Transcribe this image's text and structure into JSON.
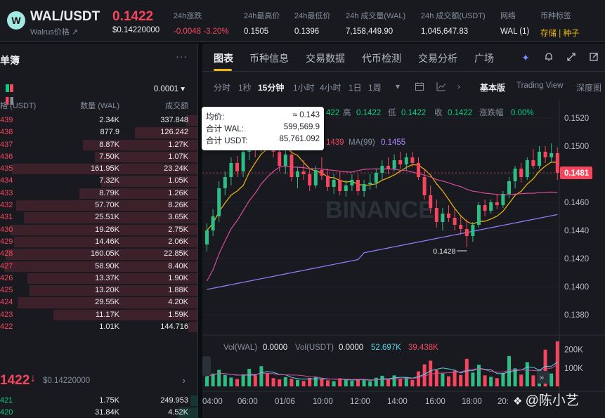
{
  "header": {
    "logo_letter": "W",
    "pair": "WAL/USDT",
    "subname": "Walrus价格 ↗",
    "last_price": "0.1422",
    "last_price_usd": "$0.14220000",
    "stats": [
      {
        "label": "24h涨跌",
        "value": "-0.0048 -3.20%",
        "tone": "neg"
      },
      {
        "label": "24h最高价",
        "value": "0.1505",
        "tone": ""
      },
      {
        "label": "24h最低价",
        "value": "0.1396",
        "tone": ""
      },
      {
        "label": "24h 成交量(WAL)",
        "value": "7,158,449.90",
        "tone": ""
      },
      {
        "label": "24h 成交额(USDT)",
        "value": "1,045,647.83",
        "tone": ""
      },
      {
        "label": "网络",
        "value": "WAL (1)",
        "tone": ""
      },
      {
        "label": "币种标签",
        "value": "存储 | 种子",
        "tone": "tag"
      }
    ]
  },
  "orderbook": {
    "title": "单簿",
    "more": "···",
    "precision": "0.0001 ▾",
    "columns": {
      "price": "格 (USDT)",
      "qty": "数量 (WAL)",
      "total": "成交额"
    },
    "asks": [
      {
        "price": "439",
        "qty": "2.34K",
        "total": "337.848",
        "depth": 0.06
      },
      {
        "price": "438",
        "qty": "877.9",
        "total": "126.242",
        "depth": 0.32
      },
      {
        "price": "437",
        "qty": "8.87K",
        "total": "1.27K",
        "depth": 0.58
      },
      {
        "price": "436",
        "qty": "7.50K",
        "total": "1.07K",
        "depth": 0.52
      },
      {
        "price": "435",
        "qty": "161.95K",
        "total": "23.24K",
        "depth": 0.94
      },
      {
        "price": "434",
        "qty": "7.32K",
        "total": "1.05K",
        "depth": 0.49
      },
      {
        "price": "433",
        "qty": "8.79K",
        "total": "1.26K",
        "depth": 0.6
      },
      {
        "price": "432",
        "qty": "57.70K",
        "total": "8.26K",
        "depth": 0.92
      },
      {
        "price": "431",
        "qty": "25.51K",
        "total": "3.65K",
        "depth": 0.88
      },
      {
        "price": "430",
        "qty": "19.26K",
        "total": "2.75K",
        "depth": 0.95
      },
      {
        "price": "429",
        "qty": "14.46K",
        "total": "2.06K",
        "depth": 0.93
      },
      {
        "price": "428",
        "qty": "160.05K",
        "total": "22.85K",
        "depth": 0.97
      },
      {
        "price": "427",
        "qty": "58.90K",
        "total": "8.40K",
        "depth": 0.98
      },
      {
        "price": "426",
        "qty": "13.37K",
        "total": "1.90K",
        "depth": 0.86
      },
      {
        "price": "425",
        "qty": "13.20K",
        "total": "1.88K",
        "depth": 0.85
      },
      {
        "price": "424",
        "qty": "29.55K",
        "total": "4.20K",
        "depth": 0.91
      },
      {
        "price": "423",
        "qty": "11.17K",
        "total": "1.59K",
        "depth": 0.73
      },
      {
        "price": "422",
        "qty": "1.01K",
        "total": "144.716",
        "depth": 0.05
      }
    ],
    "mid_price": "1422",
    "mid_arrow": "↓",
    "mid_usd": "$0.14220000",
    "mid_chevron": "›",
    "bids": [
      {
        "price": "421",
        "qty": "1.75K",
        "total": "249.953",
        "depth": 0.04
      },
      {
        "price": "420",
        "qty": "31.84K",
        "total": "4.52K",
        "depth": 0.1
      }
    ]
  },
  "panel": {
    "tabs": [
      "图表",
      "币种信息",
      "交易数据",
      "代币检测",
      "交易分析",
      "广场"
    ],
    "icons": [
      "sparkle-icon",
      "bell-icon",
      "expand-icon",
      "popout-icon"
    ],
    "timeframes": [
      "分时",
      "1秒",
      "15分钟",
      "1小时",
      "4小时",
      "1日",
      "1周"
    ],
    "active_timeframe": "15分钟",
    "views": [
      "基本版",
      "Trading View",
      "深度图"
    ],
    "active_view": "基本版"
  },
  "chart_data": {
    "type": "candlestick",
    "ohlc_legend": {
      "high_label": "高",
      "high": "0.1422",
      "low_label": "低",
      "low": "0.1422",
      "close_label": "收",
      "close": "0.1422",
      "change_label": "涨跌幅",
      "change": "0.00%",
      "open_partial": "422"
    },
    "ma_legend": {
      "ma_partial": "1439",
      "ma99_label": "MA(99)",
      "ma99": "0.1455"
    },
    "price_axis": [
      "0.1520",
      "0.1500",
      "0.1480",
      "0.1460",
      "0.1440",
      "0.1420",
      "0.1400",
      "0.1380"
    ],
    "price_range": [
      0.1368,
      0.1533
    ],
    "current_price_label": "0.1481",
    "low_marker": "0.1428",
    "time_axis": [
      "04:00",
      "06:00",
      "01/06",
      "10:00",
      "12:00",
      "14:00",
      "16:00",
      "18:00",
      "20:"
    ],
    "watermark": "BINANCE",
    "volume_legend": {
      "vol_wal_label": "Vol(WAL)",
      "vol_wal": "0.0000",
      "vol_usdt_label": "Vol(USDT)",
      "vol_usdt": "0.0000",
      "ma1": "52.697K",
      "ma2": "39.438K"
    },
    "volume_axis": [
      "200K",
      "100K"
    ],
    "volume_range": [
      0,
      260000
    ],
    "candles": [
      [
        0.143,
        0.1445,
        0.1425,
        0.144
      ],
      [
        0.144,
        0.1455,
        0.1436,
        0.145
      ],
      [
        0.145,
        0.1475,
        0.1446,
        0.147
      ],
      [
        0.147,
        0.1482,
        0.1465,
        0.1478
      ],
      [
        0.1478,
        0.1492,
        0.1472,
        0.1488
      ],
      [
        0.1488,
        0.1493,
        0.1478,
        0.1482
      ],
      [
        0.1482,
        0.15,
        0.1478,
        0.1496
      ],
      [
        0.1496,
        0.151,
        0.149,
        0.1505
      ],
      [
        0.1505,
        0.1512,
        0.1492,
        0.1498
      ],
      [
        0.1498,
        0.1518,
        0.1496,
        0.1514
      ],
      [
        0.1514,
        0.152,
        0.15,
        0.1503
      ],
      [
        0.1503,
        0.151,
        0.1492,
        0.1496
      ],
      [
        0.1496,
        0.15,
        0.1482,
        0.1486
      ],
      [
        0.1486,
        0.1498,
        0.148,
        0.1494
      ],
      [
        0.1494,
        0.1497,
        0.1475,
        0.1478
      ],
      [
        0.1478,
        0.1485,
        0.147,
        0.1482
      ],
      [
        0.1482,
        0.149,
        0.1476,
        0.148
      ],
      [
        0.148,
        0.1484,
        0.1468,
        0.1472
      ],
      [
        0.1472,
        0.1486,
        0.147,
        0.1483
      ],
      [
        0.1483,
        0.1492,
        0.1476,
        0.1479
      ],
      [
        0.1479,
        0.1484,
        0.1468,
        0.1471
      ],
      [
        0.1471,
        0.148,
        0.1466,
        0.1476
      ],
      [
        0.1476,
        0.1482,
        0.1465,
        0.1468
      ],
      [
        0.1468,
        0.1476,
        0.1464,
        0.1472
      ],
      [
        0.1472,
        0.148,
        0.1468,
        0.1476
      ],
      [
        0.1476,
        0.148,
        0.1465,
        0.1468
      ],
      [
        0.1468,
        0.1476,
        0.1464,
        0.1473
      ],
      [
        0.1473,
        0.148,
        0.1469,
        0.1474
      ],
      [
        0.1474,
        0.1484,
        0.147,
        0.1481
      ],
      [
        0.1481,
        0.149,
        0.1476,
        0.1486
      ],
      [
        0.1486,
        0.1492,
        0.148,
        0.1484
      ],
      [
        0.1484,
        0.1494,
        0.1482,
        0.149
      ],
      [
        0.149,
        0.1496,
        0.1484,
        0.1487
      ],
      [
        0.1487,
        0.1495,
        0.1483,
        0.1492
      ],
      [
        0.1492,
        0.1496,
        0.1485,
        0.1488
      ],
      [
        0.1488,
        0.1492,
        0.1476,
        0.1478
      ],
      [
        0.1478,
        0.1484,
        0.1462,
        0.1465
      ],
      [
        0.1465,
        0.1472,
        0.1452,
        0.1456
      ],
      [
        0.1456,
        0.1462,
        0.1442,
        0.1446
      ],
      [
        0.1446,
        0.1456,
        0.144,
        0.1452
      ],
      [
        0.1452,
        0.1458,
        0.1446,
        0.1449
      ],
      [
        0.1449,
        0.1455,
        0.144,
        0.1444
      ],
      [
        0.1444,
        0.145,
        0.1437,
        0.1441
      ],
      [
        0.1441,
        0.1448,
        0.1428,
        0.1436
      ],
      [
        0.1436,
        0.1446,
        0.1432,
        0.1444
      ],
      [
        0.1444,
        0.146,
        0.1442,
        0.1458
      ],
      [
        0.1458,
        0.1462,
        0.145,
        0.1454
      ],
      [
        0.1454,
        0.1462,
        0.1452,
        0.146
      ],
      [
        0.146,
        0.1466,
        0.1455,
        0.1458
      ],
      [
        0.1458,
        0.1468,
        0.1456,
        0.1466
      ],
      [
        0.1466,
        0.1478,
        0.1463,
        0.1475
      ],
      [
        0.1475,
        0.1486,
        0.147,
        0.1484
      ],
      [
        0.1484,
        0.1488,
        0.1474,
        0.1478
      ],
      [
        0.1478,
        0.1492,
        0.1476,
        0.149
      ],
      [
        0.149,
        0.1498,
        0.1484,
        0.1486
      ],
      [
        0.1486,
        0.15,
        0.1484,
        0.1496
      ],
      [
        0.1496,
        0.15,
        0.1488,
        0.1492
      ],
      [
        0.1492,
        0.1502,
        0.1488,
        0.1495
      ],
      [
        0.1495,
        0.1499,
        0.1476,
        0.1481
      ]
    ],
    "volumes": [
      55,
      70,
      90,
      62,
      48,
      40,
      66,
      95,
      60,
      110,
      72,
      45,
      38,
      50,
      42,
      35,
      30,
      46,
      52,
      40,
      33,
      28,
      44,
      36,
      30,
      40,
      34,
      28,
      47,
      58,
      38,
      60,
      42,
      48,
      35,
      82,
      120,
      140,
      90,
      70,
      55,
      86,
      62,
      150,
      75,
      118,
      60,
      52,
      45,
      72,
      165,
      98,
      64,
      132,
      60,
      88,
      200,
      70,
      245
    ]
  },
  "watermark_author": {
    "icon": "binance-square-icon",
    "name": "@陈小艺"
  }
}
